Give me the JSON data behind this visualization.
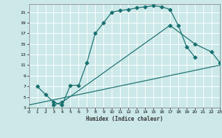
{
  "xlabel": "Humidex (Indice chaleur)",
  "background_color": "#cce8e8",
  "grid_color": "#ffffff",
  "line_color": "#1a7070",
  "xlim": [
    0,
    23
  ],
  "ylim": [
    3,
    22.5
  ],
  "yticks": [
    3,
    5,
    7,
    9,
    11,
    13,
    15,
    17,
    19,
    21
  ],
  "curve1_x": [
    1,
    2,
    3,
    4,
    5,
    6,
    7,
    8,
    9,
    10,
    11,
    12,
    13,
    14,
    15,
    16,
    17,
    18,
    19,
    20
  ],
  "curve1_y": [
    7.0,
    5.5,
    4.0,
    3.5,
    7.2,
    7.2,
    11.5,
    17.0,
    19.0,
    21.0,
    21.3,
    21.5,
    21.8,
    22.0,
    22.2,
    22.0,
    21.5,
    18.5,
    14.5,
    12.5
  ],
  "curve2_x": [
    3,
    4,
    17,
    20,
    22,
    23
  ],
  "curve2_y": [
    3.5,
    4.0,
    18.5,
    15.0,
    13.5,
    11.5
  ],
  "curve3_x": [
    0,
    23
  ],
  "curve3_y": [
    3.5,
    11.0
  ],
  "markersize": 2.5
}
